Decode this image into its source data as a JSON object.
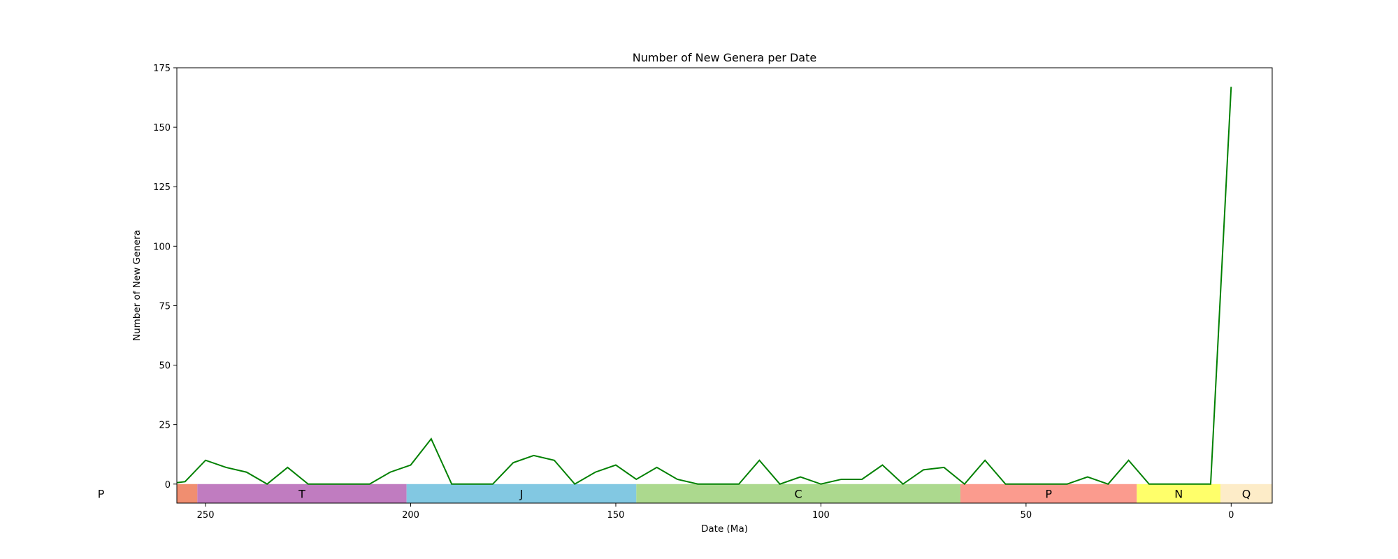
{
  "chart_data": {
    "type": "line",
    "title": "Number of New Genera per Date",
    "xlabel": "Date (Ma)",
    "ylabel": "Number of New Genera",
    "x_reversed": true,
    "xlim": [
      257,
      -10
    ],
    "ylim": [
      -8,
      175
    ],
    "xticks": [
      250,
      200,
      150,
      100,
      50,
      0
    ],
    "yticks": [
      0,
      25,
      50,
      75,
      100,
      125,
      150,
      175
    ],
    "grid": false,
    "legend": "none",
    "series": [
      {
        "color": "#008000",
        "x": [
          260,
          255,
          250,
          245,
          240,
          235,
          230,
          225,
          220,
          215,
          210,
          205,
          200,
          195,
          190,
          185,
          180,
          175,
          170,
          165,
          160,
          155,
          150,
          145,
          140,
          135,
          130,
          125,
          120,
          115,
          110,
          105,
          100,
          95,
          90,
          85,
          80,
          75,
          70,
          65,
          60,
          55,
          50,
          45,
          40,
          35,
          30,
          25,
          20,
          15,
          10,
          5,
          0
        ],
        "y": [
          0,
          1,
          10,
          7,
          5,
          0,
          7,
          0,
          0,
          0,
          0,
          5,
          8,
          19,
          0,
          0,
          0,
          9,
          12,
          10,
          0,
          5,
          8,
          2,
          7,
          2,
          0,
          0,
          0,
          10,
          0,
          3,
          0,
          2,
          2,
          8,
          0,
          6,
          7,
          0,
          10,
          0,
          0,
          0,
          0,
          3,
          0,
          10,
          0,
          0,
          0,
          0,
          167
        ]
      }
    ],
    "periods": [
      {
        "label": "P",
        "start": 299,
        "end": 252,
        "color": "#f08e70"
      },
      {
        "label": "T",
        "start": 252,
        "end": 201,
        "color": "#c07cc0"
      },
      {
        "label": "J",
        "start": 201,
        "end": 145,
        "color": "#82c8e2"
      },
      {
        "label": "C",
        "start": 145,
        "end": 66,
        "color": "#acd98e"
      },
      {
        "label": "P",
        "start": 66,
        "end": 23,
        "color": "#fb9b8e"
      },
      {
        "label": "N",
        "start": 23,
        "end": 2.6,
        "color": "#ffff6a"
      },
      {
        "label": "Q",
        "start": 2.6,
        "end": -10,
        "color": "#fdecc8"
      }
    ],
    "period_band": [
      -8,
      0
    ]
  }
}
